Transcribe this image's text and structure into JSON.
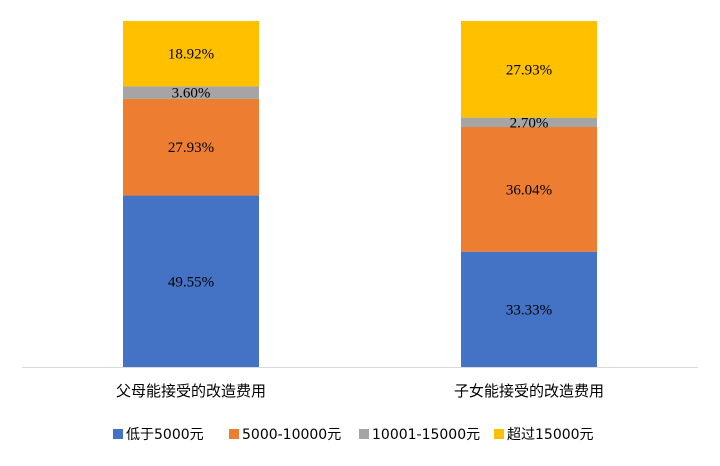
{
  "chart_data": {
    "type": "bar",
    "stacked": true,
    "percent": true,
    "categories": [
      "父母能接受的改造费用",
      "子女能接受的改造费用"
    ],
    "series": [
      {
        "name": "低于5000元",
        "color": "#4472C4",
        "values": [
          49.55,
          33.33
        ],
        "labels": [
          "49.55%",
          "33.33%"
        ]
      },
      {
        "name": "5000-10000元",
        "color": "#ED7D31",
        "values": [
          27.93,
          36.04
        ],
        "labels": [
          "27.93%",
          "36.04%"
        ]
      },
      {
        "name": "10001-15000元",
        "color": "#A5A5A5",
        "values": [
          3.6,
          2.7
        ],
        "labels": [
          "3.60%",
          "2.70%"
        ]
      },
      {
        "name": "超过15000元",
        "color": "#FFC000",
        "values": [
          18.92,
          27.93
        ],
        "labels": [
          "18.92%",
          "27.93%"
        ]
      }
    ],
    "ylim": [
      0,
      100
    ],
    "grid": false,
    "legend": "bottom"
  }
}
